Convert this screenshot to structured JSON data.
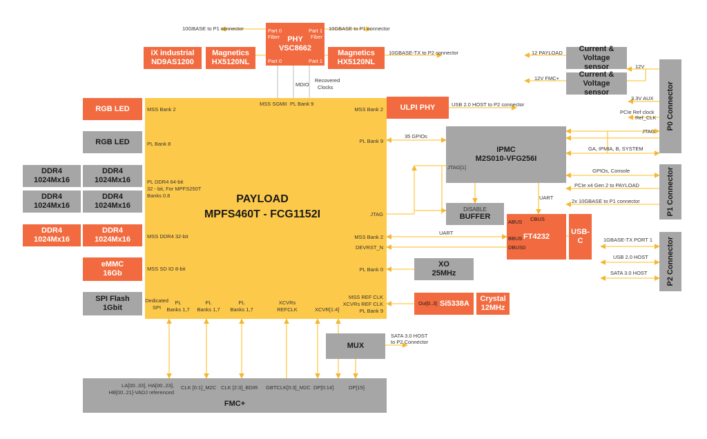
{
  "payload": {
    "title_line1": "PAYLOAD",
    "title_line2": "MPFS460T - FCG1152I",
    "ports": {
      "mss_sgmii": "MSS SGMII",
      "pl_bank9_top": "PL Bank 9",
      "mss_bank2_left": "MSS Bank 2",
      "pl_bank8": "PL Bank 8",
      "pl_ddr4_1": "PL DDR4 64-bit",
      "pl_ddr4_2": "32 - bit, For MPFS250T",
      "pl_ddr4_3": "Banks 0.8",
      "mss_ddr4": "MSS DDR4 32-bit",
      "mss_sd": "MSS SD IO 8-bit",
      "dedicated_1": "Dedicated",
      "dedicated_2": "SPI",
      "pl_a_1": "PL",
      "pl_a_2": "Banks 1,7",
      "pl_b_1": "PL",
      "pl_b_2": "Banks 1,7",
      "pl_c_1": "PL",
      "pl_c_2": "Banks 1,7",
      "xcvrs_1": "XCVRs",
      "xcvrs_2": "REFCLK",
      "xcvr14": "XCVR[1:4]",
      "mss_bank2_right": "MSS Bank 2",
      "pl_bank9_right": "PL Bank 9",
      "jtag": "JTAG",
      "mss_bank2_low": "MSS Bank 2",
      "devrst": "DEVRST_N",
      "pl_bank0": "PL Bank 0",
      "refclk_1": "MSS REF CLK",
      "refclk_2": "XCVRs REF CLK",
      "refclk_3": "PL Bank 9"
    }
  },
  "phy": {
    "title": "PHY",
    "part": "VSC8662",
    "p0_fiber_1": "Part 0",
    "p0_fiber_2": "Fiber",
    "p1_fiber_1": "Part 1",
    "p1_fiber_2": "Fiber",
    "p0": "Part 0",
    "p1": "Part 1"
  },
  "blocks": {
    "ix_1": "iX industrial",
    "ix_2": "ND9AS1200",
    "mag_left_1": "Magnetics",
    "mag_left_2": "HX5120NL",
    "mag_right_1": "Magnetics",
    "mag_right_2": "HX5120NL",
    "rgb_led_1": "RGB LED",
    "rgb_led_2": "RGB LED",
    "ddr_1": "DDR4",
    "ddr_2": "1024Mx16",
    "emmc_1": "eMMC",
    "emmc_2": "16Gb",
    "spi_1": "SPI Flash",
    "spi_2": "1Gbit",
    "ulpi": "ULPI PHY",
    "ipmc_1": "IPMC",
    "ipmc_2": "M2S010-VFG256I",
    "ipmc_jtag": "JTAG[1]",
    "buffer_1": "DISABLE",
    "buffer_2": "BUFFER",
    "ft_abus": "ABUS",
    "ft_cbus": "CBUS",
    "ft_bbus": "BBUS",
    "ft_dbus": "DBUS0",
    "ft_name": "FT4232",
    "usbc": "USB-C",
    "xo_1": "XO",
    "xo_2": "25MHz",
    "si_out": "Out[0..3]",
    "si_name": "Si5338A",
    "crystal_1": "Crystal",
    "crystal_2": "12MHz",
    "mux": "MUX",
    "cvs1_1": "Current & Voltage",
    "cvs1_2": "sensor",
    "cvs2_1": "Current & Voltage",
    "cvs2_2": "sensor",
    "p0": "P0 Connector",
    "p1": "P1 Connector",
    "p2": "P2 Connector",
    "fmc": "FMC+"
  },
  "labels": {
    "tenG_left": "10GBASE to P1 connector",
    "tenG_right": "10GBASE to P1 connector",
    "tenG_tx": "10GBASE-TX to P2 connector",
    "mdio": "MDIO",
    "recovered_1": "Recovered",
    "recovered_2": "Clocks",
    "usb_host": "USB 2.0 HOST to P2 connector",
    "gpios35": "35 GPIOs",
    "uart_ipmc": "UART",
    "uart_mss": "UART",
    "twelve_payload": "12 PAYLOAD",
    "twelve_v": "12V",
    "twelve_fmc": "12V FMC+",
    "aux": "3.3V AUX",
    "pcie_ref": "PCIe Ref clock",
    "ref_clk": "Ref_CLK",
    "jtag_p0": "JTAG",
    "ga": "GA, IPMIA, B, SYSTEM",
    "gpios_console": "GPIOs, Console",
    "pcie_x4": "PCIe x4 Gen 2 to PAYLOAD",
    "tenG_p1": "2x 10GBASE to P1 connector",
    "gbase_tx": "1GBASE-TX PORT 1",
    "usb_p2": "USB 2.0 HOST",
    "sata_p2": "SATA 3.0 HOST",
    "sata_mux_1": "SATA 3.0 HOST",
    "sata_mux_2": "to P2 Connector",
    "fmc_la_1": "LA[00..33], HA[00..23],",
    "fmc_la_2": "HB[00..21]-VADJ referenced",
    "fmc_clk01": "CLK [0:1]_M2C",
    "fmc_clk23": "CLK [2:3]_BDIR",
    "fmc_gbt": "GBTCLK[0:3]_M2C",
    "fmc_dp014": "DP[0:14]",
    "fmc_dp15": "DP[15]"
  },
  "colors": {
    "payload": "#fdc94a",
    "orange": "#f26a3f",
    "grey": "#a6a6a6",
    "wire": "#fdc94a"
  }
}
